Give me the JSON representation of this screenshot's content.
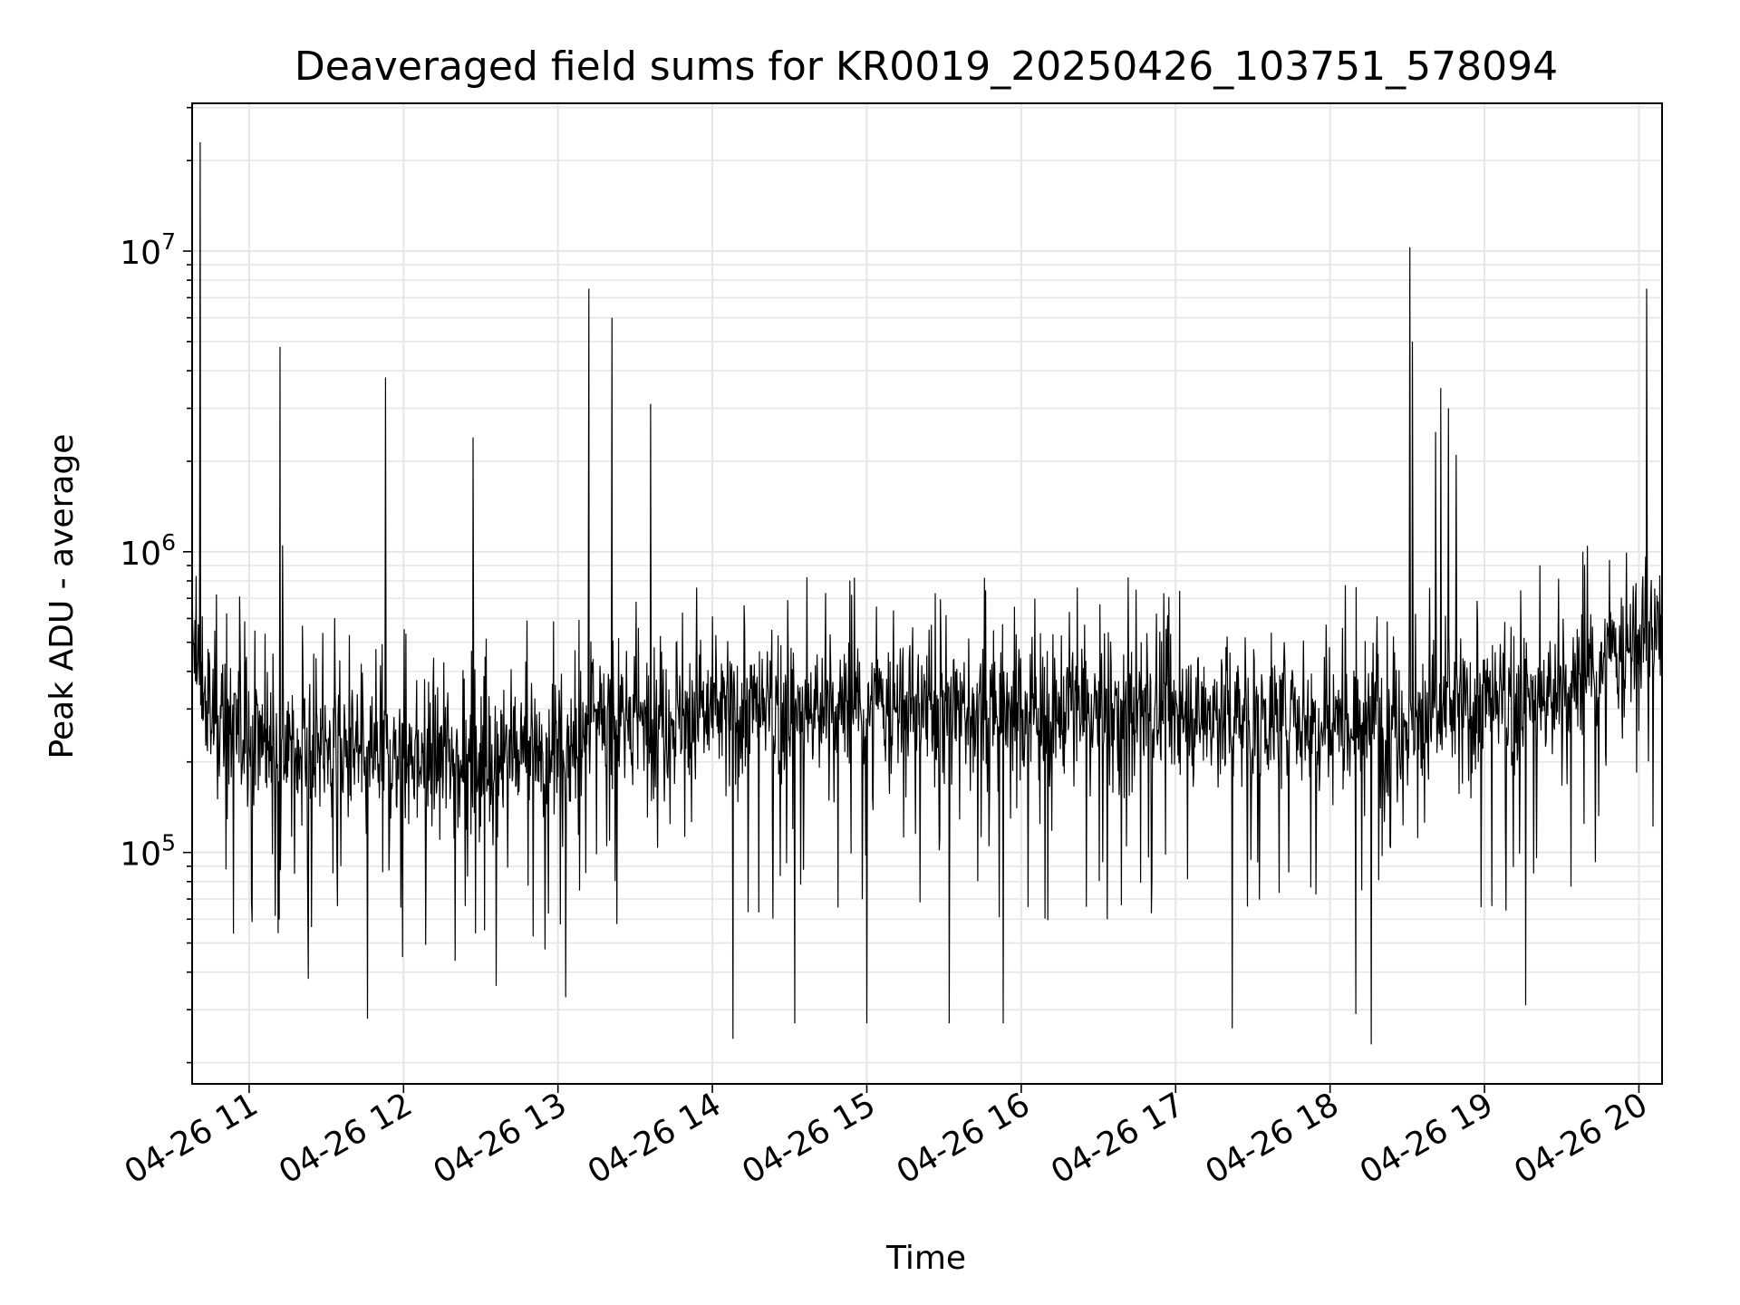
{
  "chart_data": {
    "type": "line",
    "title": "Deaveraged field sums for KR0019_20250426_103751_578094",
    "xlabel": "Time",
    "ylabel": "Peak ADU - average",
    "yscale": "log",
    "ylim": [
      17000,
      31000000
    ],
    "xlim": [
      "2025-04-26 10:37:51",
      "2025-04-26 20:09:00"
    ],
    "grid": true,
    "line_color": "#000000",
    "grid_color": "#e6e6e6",
    "x_ticks": [
      {
        "label": "04-26 11",
        "t": "2025-04-26 11:00"
      },
      {
        "label": "04-26 12",
        "t": "2025-04-26 12:00"
      },
      {
        "label": "04-26 13",
        "t": "2025-04-26 13:00"
      },
      {
        "label": "04-26 14",
        "t": "2025-04-26 14:00"
      },
      {
        "label": "04-26 15",
        "t": "2025-04-26 15:00"
      },
      {
        "label": "04-26 16",
        "t": "2025-04-26 16:00"
      },
      {
        "label": "04-26 17",
        "t": "2025-04-26 17:00"
      },
      {
        "label": "04-26 18",
        "t": "2025-04-26 18:00"
      },
      {
        "label": "04-26 19",
        "t": "2025-04-26 19:00"
      },
      {
        "label": "04-26 20",
        "t": "2025-04-26 20:00"
      }
    ],
    "y_ticks": [
      {
        "base": "10",
        "exp": "5",
        "value": 100000
      },
      {
        "base": "10",
        "exp": "6",
        "value": 1000000
      },
      {
        "base": "10",
        "exp": "7",
        "value": 10000000
      }
    ],
    "baseline": [
      {
        "t": "2025-04-26 10:38",
        "y": 450000
      },
      {
        "t": "2025-04-26 10:45",
        "y": 280000
      },
      {
        "t": "2025-04-26 11:15",
        "y": 220000
      },
      {
        "t": "2025-04-26 12:00",
        "y": 210000
      },
      {
        "t": "2025-04-26 12:30",
        "y": 210000
      },
      {
        "t": "2025-04-26 13:10",
        "y": 215000
      },
      {
        "t": "2025-04-26 13:12",
        "y": 270000
      },
      {
        "t": "2025-04-26 14:00",
        "y": 290000
      },
      {
        "t": "2025-04-26 15:30",
        "y": 300000
      },
      {
        "t": "2025-04-26 17:00",
        "y": 290000
      },
      {
        "t": "2025-04-26 18:30",
        "y": 280000
      },
      {
        "t": "2025-04-26 19:30",
        "y": 330000
      },
      {
        "t": "2025-04-26 20:09",
        "y": 560000
      }
    ],
    "spikes": [
      {
        "t": "2025-04-26 10:41",
        "y": 23000000
      },
      {
        "t": "2025-04-26 11:12",
        "y": 4800000
      },
      {
        "t": "2025-04-26 11:13",
        "y": 1050000
      },
      {
        "t": "2025-04-26 11:53",
        "y": 3800000
      },
      {
        "t": "2025-04-26 12:27",
        "y": 2400000
      },
      {
        "t": "2025-04-26 13:12",
        "y": 7500000
      },
      {
        "t": "2025-04-26 13:21",
        "y": 6000000
      },
      {
        "t": "2025-04-26 13:36",
        "y": 3100000
      },
      {
        "t": "2025-04-26 18:31",
        "y": 10300000
      },
      {
        "t": "2025-04-26 18:32",
        "y": 5000000
      },
      {
        "t": "2025-04-26 18:41",
        "y": 2500000
      },
      {
        "t": "2025-04-26 18:43",
        "y": 3500000
      },
      {
        "t": "2025-04-26 18:46",
        "y": 3000000
      },
      {
        "t": "2025-04-26 18:49",
        "y": 2100000
      },
      {
        "t": "2025-04-26 20:03",
        "y": 7500000
      }
    ],
    "dips": [
      {
        "t": "2025-04-26 11:23",
        "y": 38000
      },
      {
        "t": "2025-04-26 11:46",
        "y": 28000
      },
      {
        "t": "2025-04-26 12:36",
        "y": 36000
      },
      {
        "t": "2025-04-26 13:03",
        "y": 33000
      },
      {
        "t": "2025-04-26 14:08",
        "y": 24000
      },
      {
        "t": "2025-04-26 14:32",
        "y": 27000
      },
      {
        "t": "2025-04-26 15:00",
        "y": 27000
      },
      {
        "t": "2025-04-26 15:32",
        "y": 27000
      },
      {
        "t": "2025-04-26 15:53",
        "y": 27000
      },
      {
        "t": "2025-04-26 17:22",
        "y": 26000
      },
      {
        "t": "2025-04-26 18:10",
        "y": 29000
      },
      {
        "t": "2025-04-26 18:16",
        "y": 23000
      },
      {
        "t": "2025-04-26 19:16",
        "y": 31000
      }
    ]
  }
}
